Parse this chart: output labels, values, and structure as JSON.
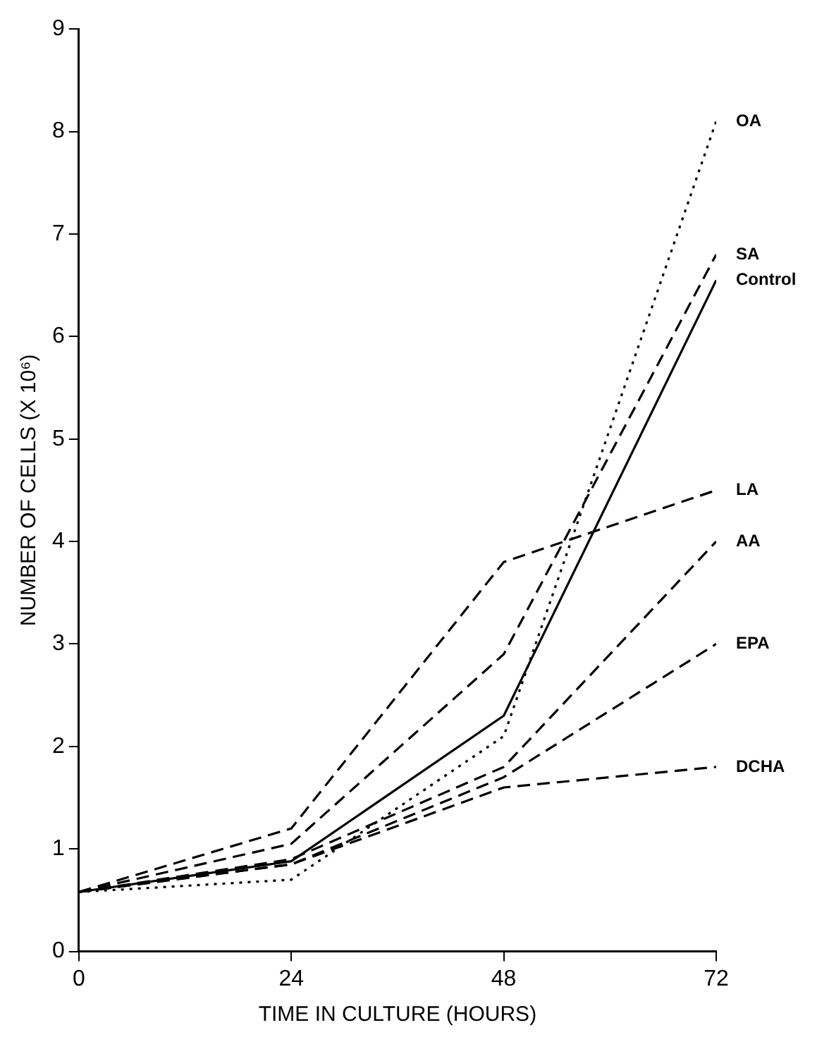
{
  "chart_data": {
    "type": "line",
    "xlabel": "TIME IN CULTURE (HOURS)",
    "ylabel": "NUMBER OF CELLS (X 10⁶)",
    "x": [
      0,
      24,
      48,
      72
    ],
    "xlim": [
      0,
      72
    ],
    "xticks": [
      0,
      24,
      48,
      72
    ],
    "ylim": [
      0,
      9
    ],
    "yticks": [
      0,
      1,
      2,
      3,
      4,
      5,
      6,
      7,
      8,
      9
    ],
    "grid": false,
    "legend": false,
    "marker": "none",
    "series": [
      {
        "name": "OA",
        "color": "#000000",
        "line_style": "dotted",
        "values": [
          0.58,
          0.7,
          2.1,
          8.1
        ]
      },
      {
        "name": "SA",
        "color": "#000000",
        "line_style": "dashed",
        "values": [
          0.58,
          1.05,
          2.9,
          6.8
        ]
      },
      {
        "name": "Control",
        "color": "#000000",
        "line_style": "solid",
        "values": [
          0.58,
          0.88,
          2.3,
          6.55
        ]
      },
      {
        "name": "LA",
        "color": "#000000",
        "line_style": "dashed",
        "values": [
          0.58,
          1.2,
          3.8,
          4.5
        ]
      },
      {
        "name": "AA",
        "color": "#000000",
        "line_style": "dashed",
        "values": [
          0.58,
          0.9,
          1.8,
          4.0
        ]
      },
      {
        "name": "EPA",
        "color": "#000000",
        "line_style": "dashed",
        "values": [
          0.58,
          0.85,
          1.7,
          3.0
        ]
      },
      {
        "name": "DCHA",
        "color": "#000000",
        "line_style": "dashed",
        "values": [
          0.58,
          0.85,
          1.6,
          1.8
        ]
      }
    ]
  }
}
